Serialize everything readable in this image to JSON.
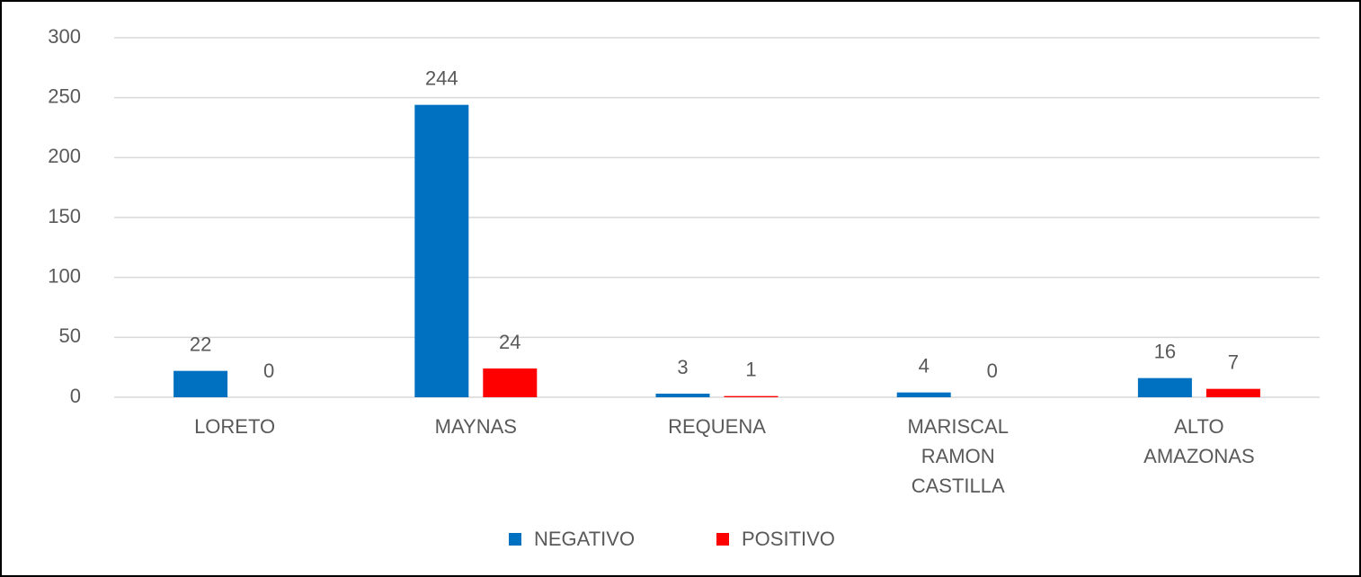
{
  "chart_data": {
    "type": "bar",
    "categories": [
      "LORETO",
      "MAYNAS",
      "REQUENA",
      "MARISCAL RAMON CASTILLA",
      "ALTO AMAZONAS"
    ],
    "series": [
      {
        "name": "NEGATIVO",
        "color": "#0070c0",
        "values": [
          22,
          244,
          3,
          4,
          16
        ]
      },
      {
        "name": "POSITIVO",
        "color": "#ff0000",
        "values": [
          0,
          24,
          1,
          0,
          7
        ]
      }
    ],
    "ylim": [
      0,
      300
    ],
    "yticks": [
      0,
      50,
      100,
      150,
      200,
      250,
      300
    ],
    "grid": true,
    "legend": "bottom"
  }
}
